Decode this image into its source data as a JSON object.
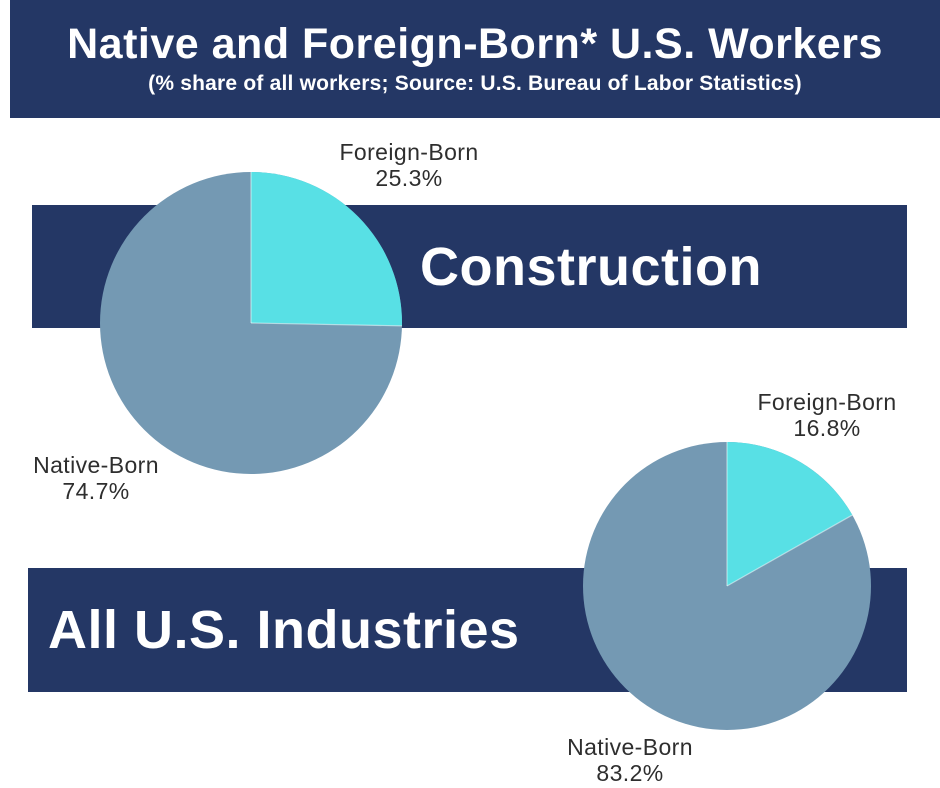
{
  "header": {
    "title": "Native and Foreign-Born* U.S. Workers",
    "subtitle": "(% share of all workers; Source: U.S. Bureau of Labor Statistics)"
  },
  "colors": {
    "banner_navy": "#243765",
    "foreign_born": "#58E0E5",
    "native_born": "#7499B3",
    "band_text": "#FFFFFF",
    "label_text": "#2E2E2E",
    "background": "#FFFFFF"
  },
  "chart_data": [
    {
      "type": "pie",
      "title": "Construction",
      "slices": [
        {
          "label": "Foreign-Born",
          "value": 25.3,
          "display": "25.3%",
          "color_key": "foreign_born"
        },
        {
          "label": "Native-Born",
          "value": 74.7,
          "display": "74.7%",
          "color_key": "native_born"
        }
      ],
      "start": "12-o'clock",
      "direction": "clockwise",
      "legend_position": "callout-labels"
    },
    {
      "type": "pie",
      "title": "All U.S. Industries",
      "slices": [
        {
          "label": "Foreign-Born",
          "value": 16.8,
          "display": "16.8%",
          "color_key": "foreign_born"
        },
        {
          "label": "Native-Born",
          "value": 83.2,
          "display": "83.2%",
          "color_key": "native_born"
        }
      ],
      "start": "12-o'clock",
      "direction": "clockwise",
      "legend_position": "callout-labels"
    }
  ]
}
